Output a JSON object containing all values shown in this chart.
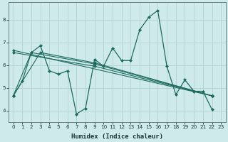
{
  "xlabel": "Humidex (Indice chaleur)",
  "bg_color": "#ceeaea",
  "grid_color": "#b8d5d5",
  "line_color": "#1e6b5e",
  "xlim": [
    -0.5,
    23.5
  ],
  "ylim": [
    3.5,
    8.75
  ],
  "xticks": [
    0,
    1,
    2,
    3,
    4,
    5,
    6,
    7,
    8,
    9,
    10,
    11,
    12,
    13,
    14,
    15,
    16,
    17,
    18,
    19,
    20,
    21,
    22,
    23
  ],
  "yticks": [
    4,
    5,
    6,
    7,
    8
  ],
  "series1": [
    [
      0,
      4.65
    ],
    [
      1,
      5.3
    ],
    [
      2,
      6.55
    ],
    [
      3,
      6.85
    ],
    [
      4,
      5.75
    ],
    [
      5,
      5.6
    ],
    [
      6,
      5.75
    ],
    [
      7,
      3.85
    ],
    [
      8,
      4.1
    ],
    [
      9,
      6.25
    ],
    [
      10,
      5.95
    ],
    [
      11,
      6.75
    ],
    [
      12,
      6.2
    ],
    [
      13,
      6.2
    ],
    [
      14,
      7.55
    ],
    [
      15,
      8.1
    ],
    [
      16,
      8.4
    ],
    [
      17,
      5.95
    ],
    [
      18,
      4.7
    ],
    [
      19,
      5.35
    ],
    [
      20,
      4.85
    ],
    [
      21,
      4.85
    ],
    [
      22,
      4.05
    ]
  ],
  "line2": [
    [
      0,
      4.65
    ],
    [
      2,
      6.55
    ],
    [
      9,
      6.05
    ],
    [
      22,
      4.65
    ]
  ],
  "line3": [
    [
      0,
      4.65
    ],
    [
      3,
      6.55
    ],
    [
      9,
      6.1
    ],
    [
      22,
      4.65
    ]
  ],
  "line4": [
    [
      0,
      6.55
    ],
    [
      9,
      5.95
    ],
    [
      22,
      4.65
    ]
  ],
  "line5": [
    [
      0,
      6.65
    ],
    [
      22,
      4.65
    ]
  ]
}
